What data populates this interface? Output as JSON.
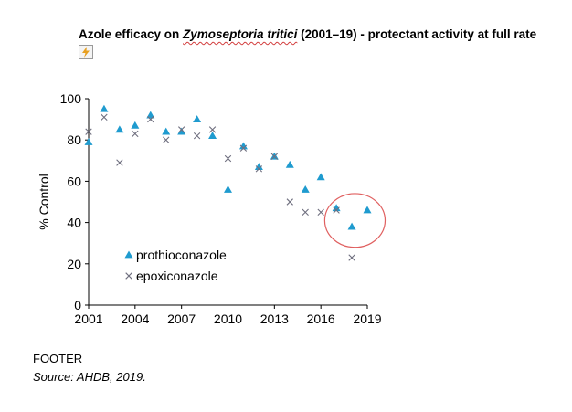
{
  "title": {
    "prefix": "Azole efficacy on ",
    "species": "Zymoseptoria tritici",
    "suffix": " (2001–19) - protectant activity at full rate"
  },
  "icons": {
    "smart_tag": "lightning-tag-icon"
  },
  "chart_data": {
    "type": "scatter",
    "title": "",
    "xlabel": "",
    "ylabel": "% Control",
    "xlim": [
      2001,
      2019
    ],
    "ylim": [
      0,
      100
    ],
    "xticks": [
      2001,
      2004,
      2007,
      2010,
      2013,
      2016,
      2019
    ],
    "yticks": [
      0,
      20,
      40,
      60,
      80,
      100
    ],
    "grid": false,
    "legend_position": "bottom-left",
    "series": [
      {
        "name": "prothioconazole",
        "marker": "triangle",
        "color": "#1f9bcf",
        "x": [
          2001,
          2002,
          2003,
          2004,
          2005,
          2006,
          2007,
          2008,
          2009,
          2010,
          2011,
          2012,
          2013,
          2014,
          2015,
          2016,
          2017,
          2018,
          2019
        ],
        "y": [
          79,
          95,
          85,
          87,
          92,
          84,
          84,
          90,
          82,
          56,
          77,
          67,
          72,
          68,
          56,
          62,
          47,
          38,
          46
        ]
      },
      {
        "name": "epoxiconazole",
        "marker": "x",
        "color": "#6f6f7f",
        "x": [
          2001,
          2002,
          2003,
          2004,
          2005,
          2006,
          2007,
          2008,
          2009,
          2010,
          2011,
          2012,
          2013,
          2014,
          2015,
          2016,
          2017,
          2018
        ],
        "y": [
          84,
          91,
          69,
          83,
          90,
          80,
          85,
          82,
          85,
          71,
          76,
          66,
          72,
          50,
          45,
          45,
          46,
          23
        ]
      }
    ],
    "annotation": {
      "shape": "circle",
      "color": "#e06060",
      "center": [
        2018.2,
        41
      ],
      "radius_x_units": 1.95,
      "radius_y_units": 13
    }
  },
  "footer": {
    "label": "FOOTER",
    "source": "Source: AHDB, 2019."
  }
}
